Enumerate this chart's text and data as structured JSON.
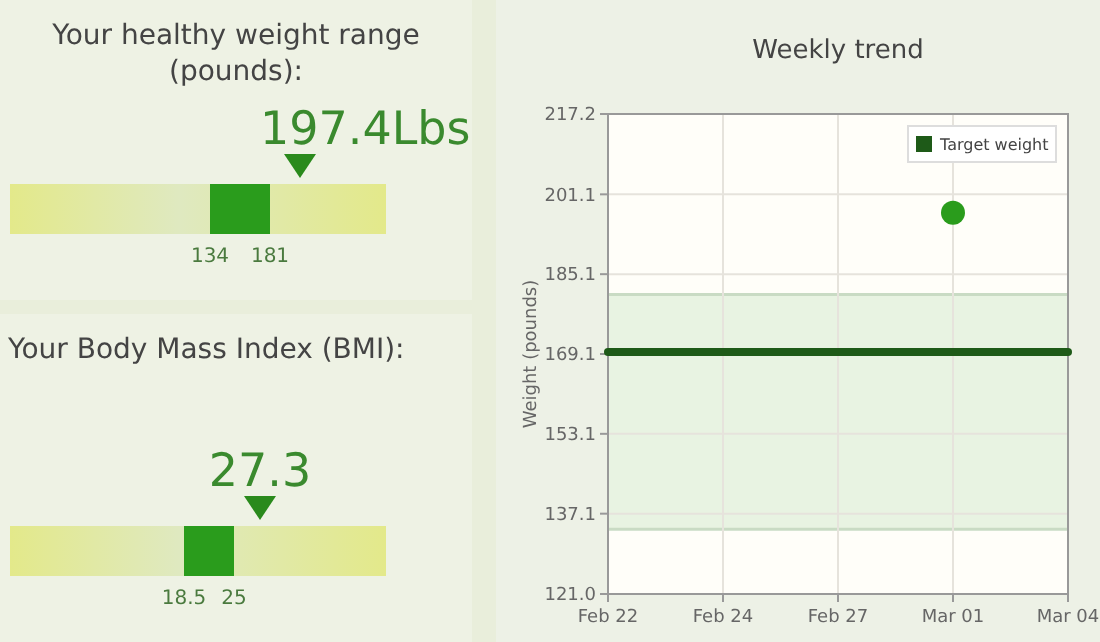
{
  "chart_data": [
    {
      "type": "other",
      "title": "Your healthy weight range (pounds):",
      "annotations": [
        "197.4Lbs",
        "134",
        "181"
      ]
    },
    {
      "type": "other",
      "title": "Your Body Mass Index (BMI):",
      "annotations": [
        "27.3",
        "18.5",
        "25"
      ]
    },
    {
      "type": "scatter",
      "title": "Weekly trend",
      "ylabel": "Weight (pounds)",
      "categories": [
        "Feb 22",
        "Feb 24",
        "Feb 27",
        "Mar 01",
        "Mar 04"
      ],
      "ylim": [
        121.0,
        217.2
      ],
      "yticks": [
        {
          "value": 121.0,
          "label": "121.0"
        },
        137.1,
        153.1,
        169.1,
        185.1,
        201.1,
        217.2
      ],
      "grid": true,
      "legend": "top right",
      "bands": [
        {
          "axis": "y",
          "from": 134,
          "to": 181,
          "color": "#e8f3e2"
        }
      ],
      "ref_lines": [
        {
          "axis": "y",
          "value": 181,
          "color": "#c9dbc4"
        },
        {
          "axis": "y",
          "value": 134,
          "color": "#c9dbc4"
        }
      ],
      "series": [
        {
          "type": "line",
          "name": "Target weight",
          "color": "#1e5a18",
          "x": [
            "Feb 22",
            "Mar 04"
          ],
          "values": [
            169.5,
            169.5
          ],
          "line_style": "solid"
        },
        {
          "type": "scatter",
          "color": "#2a9c1c",
          "x": [
            "Mar 01"
          ],
          "values": [
            197.4
          ],
          "marker": "circle"
        }
      ]
    }
  ]
}
